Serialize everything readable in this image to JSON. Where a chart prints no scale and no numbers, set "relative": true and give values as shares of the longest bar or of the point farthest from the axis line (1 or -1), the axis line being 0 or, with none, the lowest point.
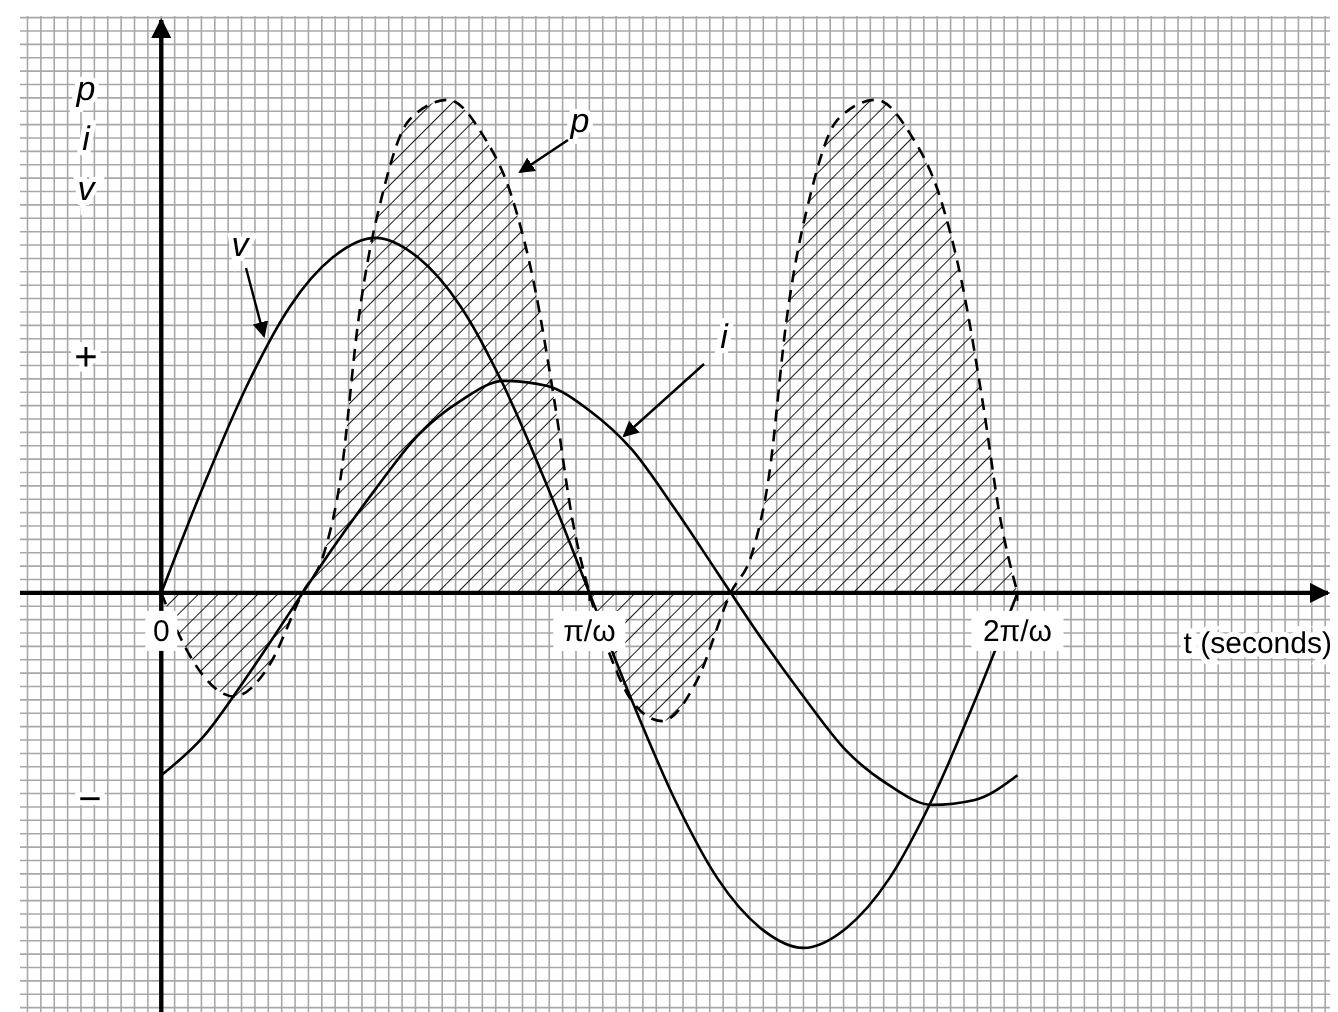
{
  "chart_data": {
    "type": "line",
    "relative": true,
    "xlabel": "t (seconds)",
    "ylabel": "p\ni\nv",
    "xlim": [
      -0.33,
      2.73
    ],
    "xticks": [
      0,
      {
        "value": 1,
        "label": "π/ω"
      },
      {
        "value": 2,
        "label": "2π/ω"
      }
    ],
    "grid": true,
    "marker": "none",
    "annotations": [
      "+",
      "−"
    ],
    "series": [
      {
        "name": "v",
        "color": "#000000",
        "line_style": "solid",
        "x": [
          0,
          0.1,
          0.2,
          0.3,
          0.4,
          0.5,
          0.6,
          0.7,
          0.8,
          0.9,
          1,
          1.1,
          1.2,
          1.3,
          1.4,
          1.5,
          1.6,
          1.7,
          1.8,
          1.9,
          2
        ],
        "values": [
          0,
          0.22,
          0.42,
          0.58,
          0.68,
          0.72,
          0.68,
          0.58,
          0.42,
          0.22,
          0,
          -0.22,
          -0.42,
          -0.58,
          -0.68,
          -0.72,
          -0.68,
          -0.58,
          -0.42,
          -0.22,
          0
        ]
      },
      {
        "name": "i",
        "color": "#000000",
        "line_style": "solid",
        "x": [
          0,
          0.1,
          0.2,
          0.3,
          0.4,
          0.5,
          0.6,
          0.7,
          0.8,
          0.9,
          1,
          1.1,
          1.2,
          1.3,
          1.4,
          1.5,
          1.6,
          1.7,
          1.8,
          1.9,
          2
        ],
        "values": [
          -0.37,
          -0.29,
          -0.17,
          -0.04,
          0.09,
          0.21,
          0.32,
          0.39,
          0.43,
          0.42,
          0.37,
          0.29,
          0.17,
          0.04,
          -0.09,
          -0.21,
          -0.32,
          -0.39,
          -0.43,
          -0.42,
          -0.37
        ]
      },
      {
        "name": "p",
        "type": "area",
        "color": "#000000",
        "line_style": "dashed",
        "x": [
          0,
          0.05,
          0.1,
          0.17,
          0.25,
          0.33,
          0.38,
          0.42,
          0.46,
          0.52,
          0.58,
          0.67,
          0.75,
          0.82,
          0.87,
          0.92,
          0.96,
          1,
          1.05,
          1.1,
          1.17,
          1.25,
          1.33,
          1.38,
          1.42,
          1.46,
          1.52,
          1.58,
          1.67,
          1.75,
          1.82,
          1.87,
          1.92,
          1.96,
          2
        ],
        "values": [
          0,
          -0.1,
          -0.17,
          -0.21,
          -0.15,
          0,
          0.08,
          0.24,
          0.55,
          0.82,
          0.96,
          1,
          0.93,
          0.8,
          0.63,
          0.38,
          0.15,
          0,
          -0.13,
          -0.22,
          -0.26,
          -0.18,
          0,
          0.08,
          0.24,
          0.55,
          0.82,
          0.96,
          1,
          0.93,
          0.8,
          0.63,
          0.38,
          0.15,
          0
        ]
      }
    ]
  }
}
